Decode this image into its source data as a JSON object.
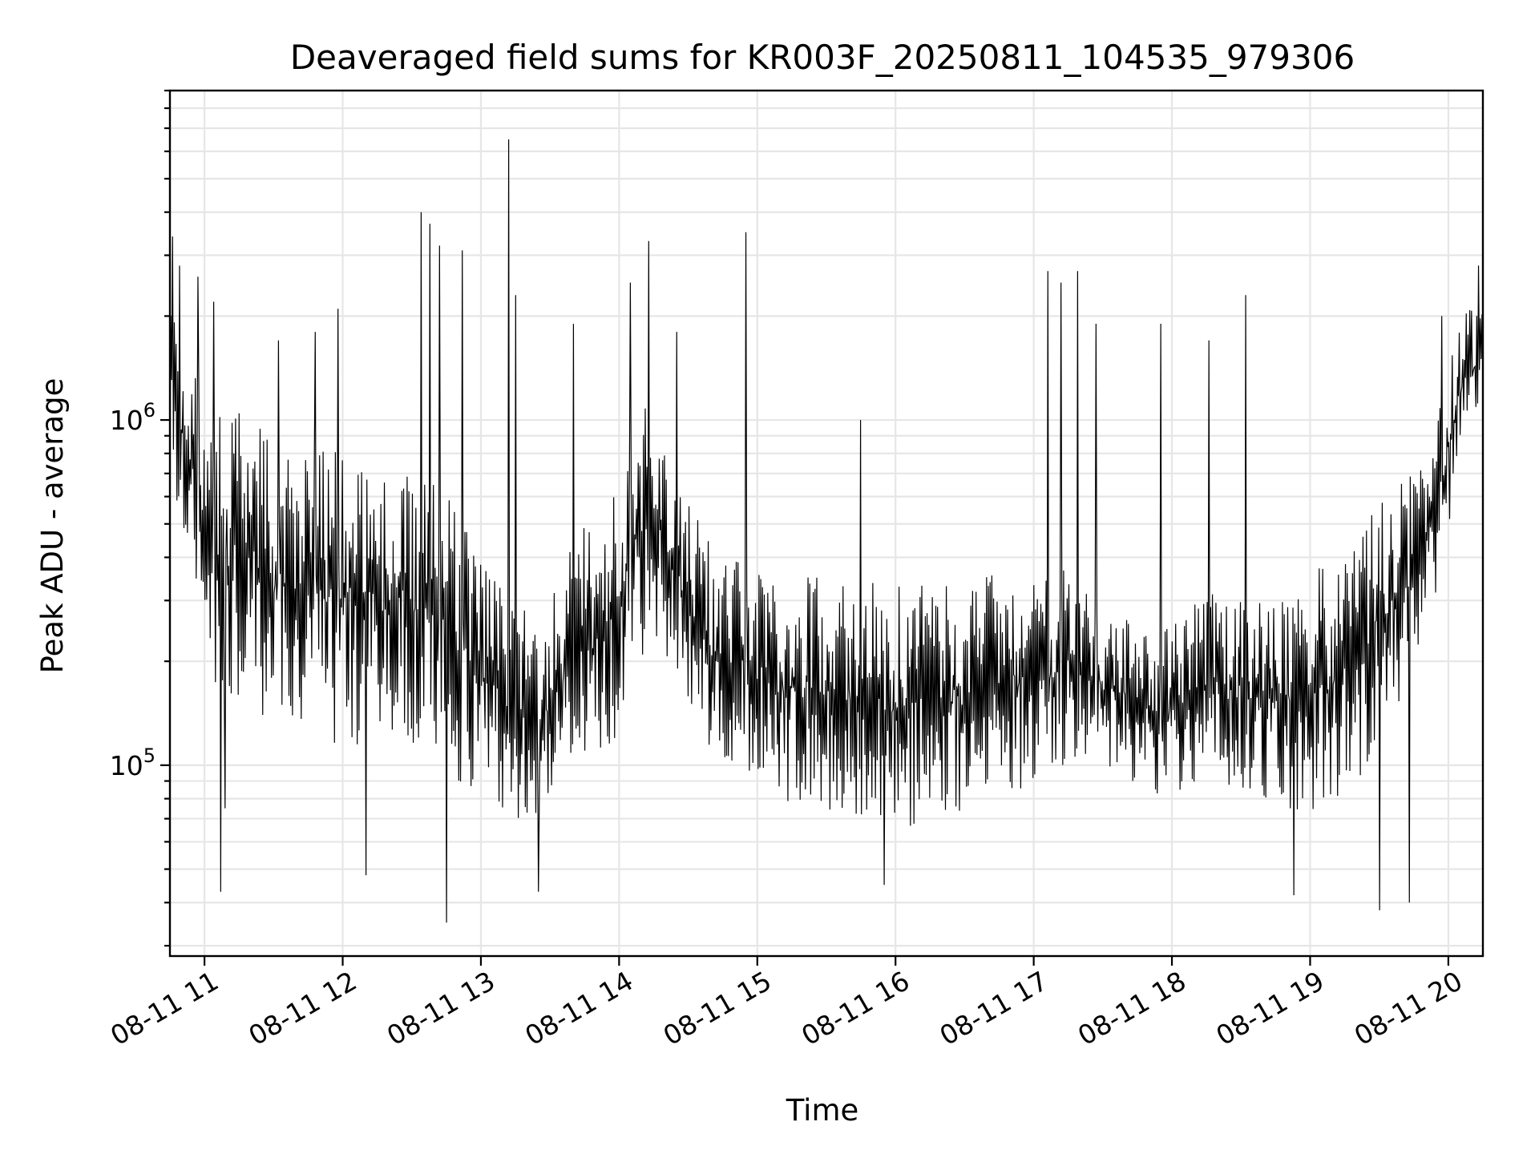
{
  "chart_data": {
    "type": "line",
    "title": "Deaveraged field sums for KR003F_20250811_104535_979306",
    "xlabel": "Time",
    "ylabel": "Peak ADU - average",
    "yscale": "log",
    "ylim": [
      28000,
      9000000
    ],
    "xlim": [
      "2025-08-11 10:45",
      "2025-08-11 20:15"
    ],
    "grid": true,
    "series_color": "#000000",
    "x_ticks": [
      {
        "t": "2025-08-11 11:00",
        "label": "08-11 11"
      },
      {
        "t": "2025-08-11 12:00",
        "label": "08-11 12"
      },
      {
        "t": "2025-08-11 13:00",
        "label": "08-11 13"
      },
      {
        "t": "2025-08-11 14:00",
        "label": "08-11 14"
      },
      {
        "t": "2025-08-11 15:00",
        "label": "08-11 15"
      },
      {
        "t": "2025-08-11 16:00",
        "label": "08-11 16"
      },
      {
        "t": "2025-08-11 17:00",
        "label": "08-11 17"
      },
      {
        "t": "2025-08-11 18:00",
        "label": "08-11 18"
      },
      {
        "t": "2025-08-11 19:00",
        "label": "08-11 19"
      },
      {
        "t": "2025-08-11 20:00",
        "label": "08-11 20"
      }
    ],
    "y_major_ticks": [
      {
        "value": 100000,
        "base": "10",
        "exp": "5"
      },
      {
        "value": 1000000,
        "base": "10",
        "exp": "6"
      }
    ],
    "series": [
      {
        "x": [
          "2025-08-11 10:45",
          "2025-08-11 10:50",
          "2025-08-11 10:55",
          "2025-08-11 11:00",
          "2025-08-11 11:05",
          "2025-08-11 11:10",
          "2025-08-11 11:15",
          "2025-08-11 11:20",
          "2025-08-11 11:25",
          "2025-08-11 11:30",
          "2025-08-11 11:35",
          "2025-08-11 11:40",
          "2025-08-11 11:45",
          "2025-08-11 11:50",
          "2025-08-11 11:55",
          "2025-08-11 12:00",
          "2025-08-11 12:05",
          "2025-08-11 12:10",
          "2025-08-11 12:15",
          "2025-08-11 12:20",
          "2025-08-11 12:25",
          "2025-08-11 12:30",
          "2025-08-11 12:35",
          "2025-08-11 12:40",
          "2025-08-11 12:45",
          "2025-08-11 12:50",
          "2025-08-11 12:55",
          "2025-08-11 13:00",
          "2025-08-11 13:05",
          "2025-08-11 13:10",
          "2025-08-11 13:15",
          "2025-08-11 13:20",
          "2025-08-11 13:25",
          "2025-08-11 13:30",
          "2025-08-11 13:35",
          "2025-08-11 13:40",
          "2025-08-11 13:45",
          "2025-08-11 13:50",
          "2025-08-11 13:55",
          "2025-08-11 14:00",
          "2025-08-11 14:05",
          "2025-08-11 14:10",
          "2025-08-11 14:15",
          "2025-08-11 14:20",
          "2025-08-11 14:25",
          "2025-08-11 14:30",
          "2025-08-11 14:35",
          "2025-08-11 14:40",
          "2025-08-11 14:45",
          "2025-08-11 14:50",
          "2025-08-11 14:55",
          "2025-08-11 15:00",
          "2025-08-11 15:05",
          "2025-08-11 15:10",
          "2025-08-11 15:15",
          "2025-08-11 15:20",
          "2025-08-11 15:25",
          "2025-08-11 15:30",
          "2025-08-11 15:35",
          "2025-08-11 15:40",
          "2025-08-11 15:45",
          "2025-08-11 15:50",
          "2025-08-11 15:55",
          "2025-08-11 16:00",
          "2025-08-11 16:05",
          "2025-08-11 16:10",
          "2025-08-11 16:15",
          "2025-08-11 16:20",
          "2025-08-11 16:25",
          "2025-08-11 16:30",
          "2025-08-11 16:35",
          "2025-08-11 16:40",
          "2025-08-11 16:45",
          "2025-08-11 16:50",
          "2025-08-11 16:55",
          "2025-08-11 17:00",
          "2025-08-11 17:05",
          "2025-08-11 17:10",
          "2025-08-11 17:15",
          "2025-08-11 17:20",
          "2025-08-11 17:25",
          "2025-08-11 17:30",
          "2025-08-11 17:35",
          "2025-08-11 17:40",
          "2025-08-11 17:45",
          "2025-08-11 17:50",
          "2025-08-11 17:55",
          "2025-08-11 18:00",
          "2025-08-11 18:05",
          "2025-08-11 18:10",
          "2025-08-11 18:15",
          "2025-08-11 18:20",
          "2025-08-11 18:25",
          "2025-08-11 18:30",
          "2025-08-11 18:35",
          "2025-08-11 18:40",
          "2025-08-11 18:45",
          "2025-08-11 18:50",
          "2025-08-11 18:55",
          "2025-08-11 19:00",
          "2025-08-11 19:05",
          "2025-08-11 19:10",
          "2025-08-11 19:15",
          "2025-08-11 19:20",
          "2025-08-11 19:25",
          "2025-08-11 19:30",
          "2025-08-11 19:35",
          "2025-08-11 19:40",
          "2025-08-11 19:45",
          "2025-08-11 19:50",
          "2025-08-11 19:55",
          "2025-08-11 20:00",
          "2025-08-11 20:05",
          "2025-08-11 20:10",
          "2025-08-11 20:15"
        ],
        "envelope_low": [
          700000,
          450000,
          350000,
          220000,
          150000,
          140000,
          160000,
          150000,
          140000,
          130000,
          130000,
          120000,
          130000,
          120000,
          110000,
          110000,
          110000,
          110000,
          115000,
          115000,
          120000,
          115000,
          110000,
          100000,
          95000,
          90000,
          85000,
          80000,
          75000,
          70000,
          70000,
          70000,
          72000,
          75000,
          85000,
          90000,
          95000,
          100000,
          110000,
          120000,
          160000,
          200000,
          220000,
          210000,
          180000,
          150000,
          130000,
          110000,
          100000,
          95000,
          90000,
          90000,
          85000,
          80000,
          78000,
          78000,
          75000,
          75000,
          72000,
          72000,
          70000,
          70000,
          68000,
          66000,
          66000,
          66000,
          68000,
          70000,
          72000,
          75000,
          78000,
          80000,
          82000,
          85000,
          85000,
          88000,
          92000,
          95000,
          100000,
          105000,
          100000,
          95000,
          90000,
          88000,
          85000,
          80000,
          80000,
          82000,
          85000,
          90000,
          95000,
          90000,
          85000,
          85000,
          80000,
          78000,
          75000,
          72000,
          70000,
          68000,
          70000,
          75000,
          80000,
          88000,
          100000,
          115000,
          135000,
          160000,
          190000,
          230000,
          290000,
          480000,
          750000,
          900000,
          1000000
        ],
        "envelope_high": [
          2600000,
          1800000,
          1400000,
          1200000,
          1100000,
          1100000,
          1050000,
          1000000,
          950000,
          900000,
          880000,
          870000,
          860000,
          850000,
          840000,
          820000,
          800000,
          780000,
          760000,
          740000,
          730000,
          720000,
          700000,
          650000,
          600000,
          550000,
          480000,
          420000,
          380000,
          340000,
          300000,
          280000,
          270000,
          300000,
          380000,
          450000,
          500000,
          550000,
          600000,
          700000,
          900000,
          1100000,
          1050000,
          900000,
          750000,
          600000,
          500000,
          450000,
          420000,
          400000,
          390000,
          380000,
          370000,
          370000,
          360000,
          350000,
          350000,
          350000,
          350000,
          345000,
          340000,
          340000,
          335000,
          330000,
          330000,
          330000,
          335000,
          340000,
          345000,
          350000,
          355000,
          360000,
          360000,
          360000,
          365000,
          370000,
          375000,
          380000,
          370000,
          350000,
          320000,
          300000,
          280000,
          270000,
          260000,
          250000,
          250000,
          260000,
          280000,
          300000,
          320000,
          310000,
          300000,
          300000,
          300000,
          300000,
          300000,
          310000,
          330000,
          350000,
          380000,
          420000,
          460000,
          500000,
          540000,
          580000,
          620000,
          660000,
          700000,
          760000,
          1000000,
          1500000,
          2000000,
          2200000,
          2200000
        ],
        "spikes": [
          {
            "t": "2025-08-11 10:46",
            "value": 3400000
          },
          {
            "t": "2025-08-11 10:49",
            "value": 2800000
          },
          {
            "t": "2025-08-11 10:57",
            "value": 2600000
          },
          {
            "t": "2025-08-11 11:04",
            "value": 2200000
          },
          {
            "t": "2025-08-11 11:07",
            "value": 43000
          },
          {
            "t": "2025-08-11 11:09",
            "value": 75000
          },
          {
            "t": "2025-08-11 11:32",
            "value": 1700000
          },
          {
            "t": "2025-08-11 11:48",
            "value": 1800000
          },
          {
            "t": "2025-08-11 11:58",
            "value": 2100000
          },
          {
            "t": "2025-08-11 12:10",
            "value": 48000
          },
          {
            "t": "2025-08-11 12:34",
            "value": 4000000
          },
          {
            "t": "2025-08-11 12:38",
            "value": 3700000
          },
          {
            "t": "2025-08-11 12:42",
            "value": 3200000
          },
          {
            "t": "2025-08-11 12:45",
            "value": 35000
          },
          {
            "t": "2025-08-11 12:52",
            "value": 3100000
          },
          {
            "t": "2025-08-11 13:12",
            "value": 6500000
          },
          {
            "t": "2025-08-11 13:15",
            "value": 2300000
          },
          {
            "t": "2025-08-11 13:25",
            "value": 43000
          },
          {
            "t": "2025-08-11 13:40",
            "value": 1900000
          },
          {
            "t": "2025-08-11 14:05",
            "value": 2500000
          },
          {
            "t": "2025-08-11 14:13",
            "value": 3300000
          },
          {
            "t": "2025-08-11 14:25",
            "value": 1800000
          },
          {
            "t": "2025-08-11 14:55",
            "value": 3500000
          },
          {
            "t": "2025-08-11 15:45",
            "value": 1000000
          },
          {
            "t": "2025-08-11 15:55",
            "value": 45000
          },
          {
            "t": "2025-08-11 17:06",
            "value": 2700000
          },
          {
            "t": "2025-08-11 17:12",
            "value": 2500000
          },
          {
            "t": "2025-08-11 17:19",
            "value": 2700000
          },
          {
            "t": "2025-08-11 17:27",
            "value": 1900000
          },
          {
            "t": "2025-08-11 17:55",
            "value": 1900000
          },
          {
            "t": "2025-08-11 18:16",
            "value": 1700000
          },
          {
            "t": "2025-08-11 18:32",
            "value": 2300000
          },
          {
            "t": "2025-08-11 18:53",
            "value": 42000
          },
          {
            "t": "2025-08-11 19:30",
            "value": 38000
          },
          {
            "t": "2025-08-11 19:43",
            "value": 40000
          },
          {
            "t": "2025-08-11 19:57",
            "value": 2000000
          },
          {
            "t": "2025-08-11 20:13",
            "value": 2800000
          }
        ]
      }
    ]
  }
}
